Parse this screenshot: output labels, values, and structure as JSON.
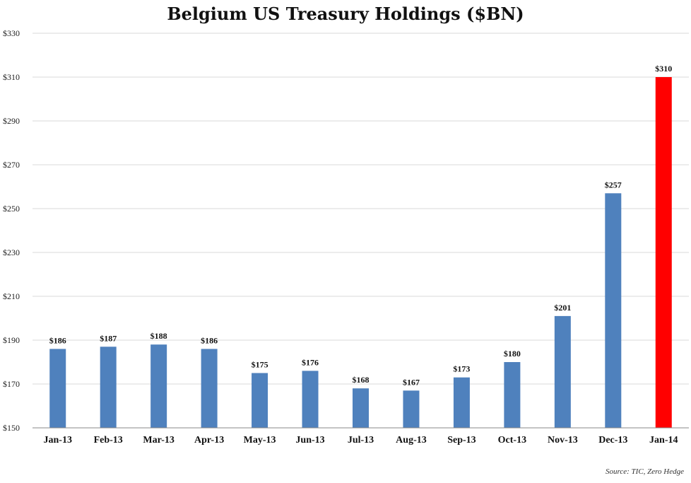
{
  "chart_data": {
    "type": "bar",
    "title": "Belgium US Treasury Holdings ($BN)",
    "categories": [
      "Jan-13",
      "Feb-13",
      "Mar-13",
      "Apr-13",
      "May-13",
      "Jun-13",
      "Jul-13",
      "Aug-13",
      "Sep-13",
      "Oct-13",
      "Nov-13",
      "Dec-13",
      "Jan-14"
    ],
    "values": [
      186,
      187,
      188,
      186,
      175,
      176,
      168,
      167,
      173,
      180,
      201,
      257,
      310
    ],
    "data_labels": [
      "$186",
      "$187",
      "$188",
      "$186",
      "$175",
      "$176",
      "$168",
      "$167",
      "$173",
      "$180",
      "$201",
      "$257",
      "$310"
    ],
    "ylim": [
      150,
      330
    ],
    "y_ticks": [
      150,
      170,
      190,
      210,
      230,
      250,
      270,
      290,
      310,
      330
    ],
    "y_tick_labels": [
      "$150",
      "$170",
      "$190",
      "$210",
      "$230",
      "$250",
      "$270",
      "$290",
      "$310",
      "$330"
    ],
    "xlabel": "",
    "ylabel": "",
    "grid": true,
    "legend": "none",
    "colors": {
      "bar": "#4f81bd",
      "highlight": "#ff0000",
      "highlight_index": 12
    },
    "source": "Source: TIC, Zero Hedge"
  }
}
